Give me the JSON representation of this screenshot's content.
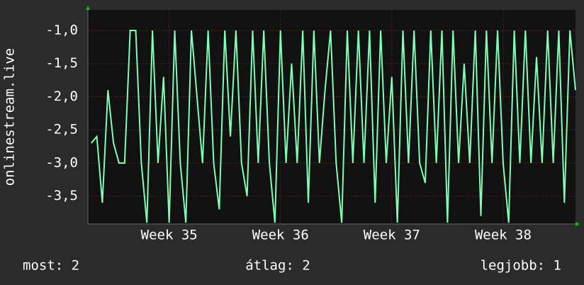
{
  "chart_data": {
    "type": "line",
    "y_label": "onlinestream.live",
    "x": [
      34.3,
      34.35,
      34.4,
      34.45,
      34.5,
      34.55,
      34.6,
      34.65,
      34.7,
      34.75,
      34.8,
      34.85,
      34.9,
      34.95,
      35.0,
      35.05,
      35.1,
      35.15,
      35.2,
      35.25,
      35.3,
      35.35,
      35.4,
      35.45,
      35.5,
      35.55,
      35.6,
      35.65,
      35.7,
      35.75,
      35.8,
      35.85,
      35.9,
      35.95,
      36.0,
      36.05,
      36.1,
      36.15,
      36.2,
      36.25,
      36.3,
      36.35,
      36.4,
      36.45,
      36.5,
      36.55,
      36.6,
      36.65,
      36.7,
      36.75,
      36.8,
      36.85,
      36.9,
      36.95,
      37.0,
      37.05,
      37.1,
      37.15,
      37.2,
      37.25,
      37.3,
      37.35,
      37.4,
      37.45,
      37.5,
      37.55,
      37.6,
      37.65,
      37.7,
      37.75,
      37.8,
      37.85,
      37.9,
      37.95,
      38.0,
      38.05,
      38.1,
      38.15,
      38.2,
      38.25,
      38.3,
      38.35,
      38.4,
      38.45,
      38.5,
      38.55,
      38.6,
      38.65
    ],
    "series": [
      {
        "color": "#7dffb4",
        "values": [
          -2.7,
          -2.6,
          -3.6,
          -1.9,
          -2.7,
          -3.0,
          -3.0,
          -1.0,
          -1.0,
          -3.0,
          -3.9,
          -1.0,
          -3.0,
          -1.7,
          -3.9,
          -1.0,
          -3.0,
          -3.9,
          -1.0,
          -2.0,
          -3.0,
          -1.0,
          -3.0,
          -3.7,
          -1.0,
          -2.6,
          -1.0,
          -3.0,
          -3.5,
          -1.0,
          -3.0,
          -1.0,
          -3.0,
          -3.9,
          -1.0,
          -3.0,
          -1.5,
          -3.0,
          -1.0,
          -3.6,
          -1.0,
          -3.0,
          -1.9,
          -1.0,
          -3.0,
          -3.9,
          -1.0,
          -3.0,
          -1.0,
          -3.0,
          -1.0,
          -3.6,
          -1.0,
          -3.0,
          -1.7,
          -3.9,
          -1.0,
          -3.0,
          -1.0,
          -3.0,
          -3.3,
          -1.0,
          -3.0,
          -1.0,
          -3.9,
          -1.0,
          -3.0,
          -1.5,
          -3.0,
          -1.0,
          -3.8,
          -1.0,
          -3.0,
          -1.0,
          -3.0,
          -3.9,
          -1.0,
          -3.0,
          -1.0,
          -3.0,
          -1.4,
          -3.0,
          -1.0,
          -3.0,
          -1.0,
          -3.6,
          -1.0,
          -1.9
        ]
      }
    ],
    "xlim": [
      34.27,
      38.65
    ],
    "xticks": [
      {
        "value": 35,
        "label": "Week 35"
      },
      {
        "value": 36,
        "label": "Week 36"
      },
      {
        "value": 37,
        "label": "Week 37"
      },
      {
        "value": 38,
        "label": "Week 38"
      }
    ],
    "ylim": [
      -3.92,
      -0.69
    ],
    "yticks": [
      {
        "value": -1.0,
        "label": "-1,0"
      },
      {
        "value": -1.5,
        "label": "-1,5"
      },
      {
        "value": -2.0,
        "label": "-2,0"
      },
      {
        "value": -2.5,
        "label": "-2,5"
      },
      {
        "value": -3.0,
        "label": "-3,0"
      },
      {
        "value": -3.5,
        "label": "-3,5"
      }
    ],
    "grid": true,
    "stats": [
      "most: 2",
      "átlag: 2",
      "legjobb: 1"
    ]
  }
}
